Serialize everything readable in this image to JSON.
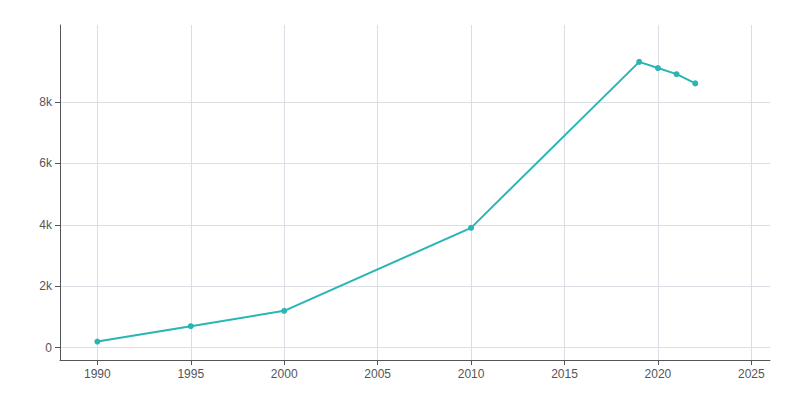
{
  "chart_data": {
    "type": "line",
    "x": [
      1990,
      1995,
      2000,
      2010,
      2019,
      2020,
      2021,
      2022
    ],
    "values": [
      200,
      700,
      1200,
      3900,
      9300,
      9100,
      8900,
      8600
    ],
    "color": "#2ab5b5",
    "marker": "circle",
    "xlim": [
      1988,
      2026
    ],
    "xticks": [
      1990,
      1995,
      2000,
      2005,
      2010,
      2015,
      2020,
      2025
    ],
    "ylim": [
      -400,
      10500
    ],
    "yticks": [
      0,
      {
        "value": 2000,
        "label": "2k"
      },
      {
        "value": 4000,
        "label": "4k"
      },
      {
        "value": 6000,
        "label": "6k"
      },
      {
        "value": 8000,
        "label": "8k"
      }
    ],
    "grid": true
  }
}
